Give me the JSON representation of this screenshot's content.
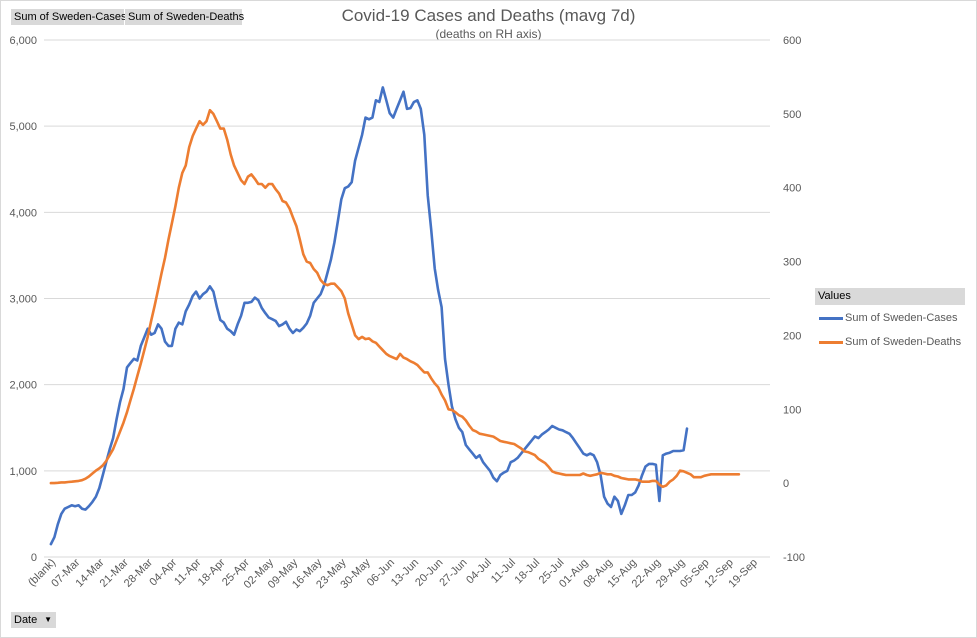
{
  "field_buttons": {
    "cases": "Sum of Sweden-Cases",
    "deaths": "Sum of Sweden-Deaths",
    "date": "Date"
  },
  "legend_header": "Values",
  "chart_data": {
    "type": "line",
    "title": "Covid-19 Cases and Deaths (mavg 7d)",
    "subtitle": "(deaths on RH axis)",
    "legend_position": "right",
    "grid": true,
    "x_tick_labels": [
      "(blank)",
      "07-Mar",
      "14-Mar",
      "21-Mar",
      "28-Mar",
      "04-Apr",
      "11-Apr",
      "18-Apr",
      "25-Apr",
      "02-May",
      "09-May",
      "16-May",
      "23-May",
      "30-May",
      "06-Jun",
      "13-Jun",
      "20-Jun",
      "27-Jun",
      "04-Jul",
      "11-Jul",
      "18-Jul",
      "25-Jul",
      "01-Aug",
      "08-Aug",
      "15-Aug",
      "22-Aug",
      "29-Aug",
      "05-Sep",
      "12-Sep",
      "19-Sep"
    ],
    "y_left": {
      "min": 0,
      "max": 6000,
      "ticks": [
        "0",
        "1,000",
        "2,000",
        "3,000",
        "4,000",
        "5,000",
        "6,000"
      ]
    },
    "y_right": {
      "min": -100,
      "max": 600,
      "ticks": [
        "-100",
        "0",
        "100",
        "200",
        "300",
        "400",
        "500",
        "600"
      ]
    },
    "series": [
      {
        "name": "Sum of Sweden-Cases",
        "axis": "left",
        "color": "#4472c4",
        "x_start": "02-Mar",
        "values": [
          150,
          230,
          380,
          500,
          560,
          580,
          600,
          590,
          600,
          560,
          550,
          590,
          640,
          700,
          800,
          950,
          1100,
          1250,
          1380,
          1600,
          1800,
          1950,
          2200,
          2250,
          2300,
          2280,
          2450,
          2550,
          2650,
          2580,
          2600,
          2700,
          2650,
          2500,
          2450,
          2450,
          2650,
          2720,
          2700,
          2850,
          2930,
          3030,
          3080,
          3000,
          3050,
          3080,
          3140,
          3080,
          2900,
          2750,
          2720,
          2650,
          2620,
          2580,
          2700,
          2800,
          2950,
          2950,
          2960,
          3010,
          2980,
          2890,
          2830,
          2780,
          2760,
          2740,
          2680,
          2700,
          2730,
          2650,
          2600,
          2640,
          2620,
          2660,
          2710,
          2800,
          2950,
          3000,
          3050,
          3150,
          3300,
          3450,
          3650,
          3900,
          4150,
          4280,
          4300,
          4350,
          4600,
          4750,
          4900,
          5100,
          5080,
          5100,
          5300,
          5280,
          5450,
          5300,
          5150,
          5100,
          5200,
          5300,
          5400,
          5200,
          5210,
          5280,
          5300,
          5200,
          4900,
          4200,
          3800,
          3350,
          3100,
          2900,
          2300,
          2000,
          1750,
          1600,
          1500,
          1450,
          1300,
          1250,
          1200,
          1150,
          1180,
          1100,
          1050,
          1000,
          920,
          880,
          950,
          980,
          1000,
          1100,
          1120,
          1150,
          1200,
          1250,
          1300,
          1350,
          1400,
          1380,
          1420,
          1450,
          1480,
          1520,
          1500,
          1480,
          1470,
          1450,
          1430,
          1380,
          1320,
          1260,
          1200,
          1180,
          1200,
          1180,
          1100,
          950,
          700,
          620,
          580,
          700,
          650,
          500,
          600,
          720,
          720,
          750,
          830,
          950,
          1050,
          1080,
          1080,
          1070,
          650,
          1180,
          1200,
          1210,
          1230,
          1230,
          1230,
          1240,
          1490
        ]
      },
      {
        "name": "Sum of Sweden-Deaths",
        "axis": "right",
        "color": "#ed7d31",
        "x_start": "02-Mar",
        "values": [
          0,
          0,
          0.5,
          1,
          1,
          1.5,
          2,
          2.5,
          3,
          4,
          6,
          9,
          13,
          17,
          20,
          24,
          30,
          38,
          46,
          58,
          70,
          82,
          96,
          112,
          128,
          145,
          162,
          180,
          198,
          220,
          240,
          262,
          284,
          305,
          330,
          352,
          375,
          400,
          420,
          430,
          455,
          470,
          480,
          490,
          485,
          490,
          505,
          500,
          490,
          480,
          480,
          465,
          445,
          430,
          420,
          410,
          405,
          415,
          418,
          412,
          405,
          405,
          400,
          405,
          405,
          398,
          392,
          382,
          380,
          372,
          360,
          348,
          330,
          310,
          300,
          298,
          290,
          285,
          275,
          270,
          268,
          270,
          270,
          265,
          260,
          250,
          230,
          215,
          200,
          195,
          198,
          195,
          196,
          192,
          190,
          185,
          180,
          175,
          172,
          170,
          168,
          175,
          170,
          168,
          165,
          163,
          160,
          155,
          150,
          150,
          142,
          135,
          130,
          120,
          112,
          100,
          99,
          96,
          92,
          90,
          85,
          78,
          72,
          70,
          67,
          66,
          65,
          64,
          63,
          60,
          57,
          56,
          55,
          54,
          53,
          50,
          47,
          43,
          42,
          40,
          38,
          33,
          30,
          27,
          22,
          16,
          14,
          13,
          12,
          11,
          11,
          11,
          11,
          11,
          13,
          11,
          10,
          11,
          12,
          14,
          13,
          12,
          12,
          10,
          9,
          7,
          6,
          5,
          5,
          5,
          4,
          2,
          2,
          2,
          3,
          3,
          -2,
          -5,
          -3,
          2,
          5,
          10,
          17,
          16,
          14,
          12,
          8,
          8,
          8,
          10,
          11,
          12,
          12,
          12,
          12,
          12,
          12,
          12,
          12,
          12
        ]
      }
    ]
  }
}
